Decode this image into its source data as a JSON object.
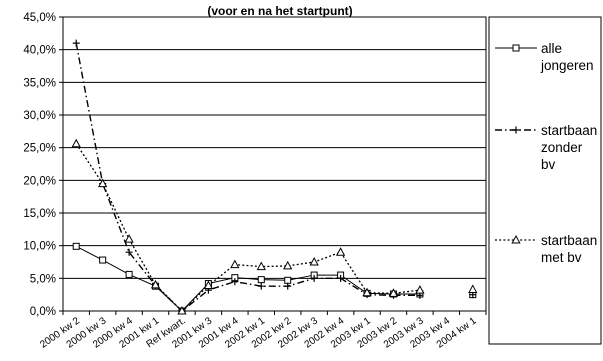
{
  "chart_data": {
    "type": "line",
    "title": "(voor en na het startpunt)",
    "xlabel": "",
    "ylabel": "",
    "ylim": [
      0,
      45
    ],
    "yticks": [
      "0,0%",
      "5,0%",
      "10,0%",
      "15,0%",
      "20,0%",
      "25,0%",
      "30,0%",
      "35,0%",
      "40,0%",
      "45,0%"
    ],
    "grid": true,
    "legend_position": "right",
    "categories": [
      "2000 kw 2",
      "2000 kw 3",
      "2000 kw 4",
      "2001 kw 1",
      "Ref kwart.",
      "2001 kw 3",
      "2001 kw 4",
      "2002 kw 1",
      "2002 kw 2",
      "2002 kw 3",
      "2002 kw 4",
      "2003 kw 1",
      "2003 kw 2",
      "2003 kw 3",
      "2003 kw 4",
      "2004 kw 1"
    ],
    "series": [
      {
        "legend_lines": [
          "alle",
          "jongeren"
        ],
        "style": "solid",
        "marker": "square",
        "values": [
          9.9,
          7.8,
          5.6,
          3.8,
          0.0,
          4.2,
          5.1,
          4.8,
          4.7,
          5.5,
          5.5,
          2.7,
          2.6,
          2.6,
          null,
          2.5
        ]
      },
      {
        "legend_lines": [
          "startbaan",
          "zonder",
          "bv"
        ],
        "style": "dashdot",
        "marker": "plus",
        "values": [
          41.0,
          19.5,
          9.0,
          3.9,
          0.0,
          3.2,
          4.5,
          3.8,
          3.8,
          5.0,
          5.0,
          2.5,
          2.4,
          2.4,
          null,
          2.5
        ]
      },
      {
        "legend_lines": [
          "startbaan",
          "met bv"
        ],
        "style": "dotted",
        "marker": "triangle",
        "values": [
          25.6,
          19.5,
          11.0,
          4.0,
          0.0,
          3.9,
          7.1,
          6.8,
          6.9,
          7.5,
          9.0,
          2.8,
          2.7,
          3.2,
          null,
          3.3
        ]
      }
    ]
  }
}
